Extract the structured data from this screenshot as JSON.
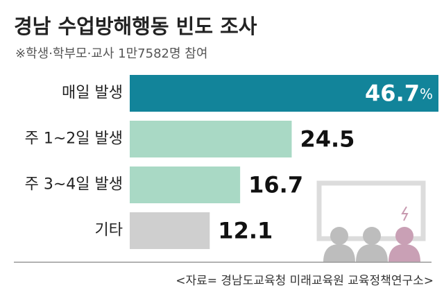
{
  "chart_data": {
    "type": "hbar",
    "title": "경남 수업방해행동 빈도 조사",
    "subtitle": "※학생·학부모·교사 1만7582명 참여",
    "categories": [
      "매일 발생",
      "주 1~2일 발생",
      "주 3~4일 발생",
      "기타"
    ],
    "values": [
      46.7,
      24.5,
      16.7,
      12.1
    ],
    "value_labels": [
      "46.7%",
      "24.5",
      "16.7",
      "12.1"
    ],
    "colors": [
      "#12849a",
      "#a9d9c5",
      "#a9d9c5",
      "#cfcfcf"
    ],
    "source": "<자료= 경남도교육청 미래교육원 교육정책연구소>"
  }
}
